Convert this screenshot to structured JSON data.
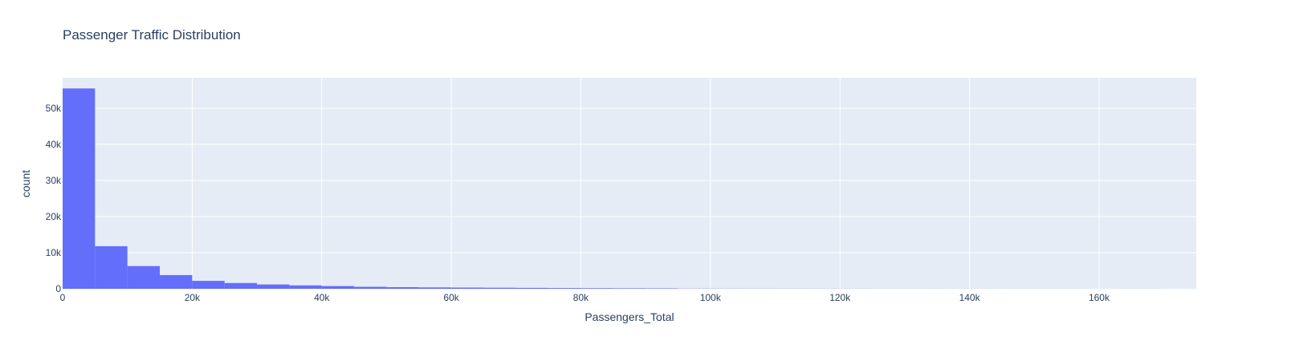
{
  "chart_data": {
    "type": "bar",
    "title": "Passenger Traffic Distribution",
    "xlabel": "Passengers_Total",
    "ylabel": "count",
    "bin_width": 5000,
    "bin_starts": [
      0,
      5000,
      10000,
      15000,
      20000,
      25000,
      30000,
      35000,
      40000,
      45000,
      50000,
      55000,
      60000,
      65000,
      70000,
      75000,
      80000,
      85000,
      90000,
      95000,
      100000,
      105000,
      110000,
      115000,
      120000,
      125000,
      130000,
      135000,
      140000,
      145000,
      150000,
      155000,
      160000,
      165000,
      170000
    ],
    "values": [
      55500,
      11800,
      6300,
      3800,
      2200,
      1600,
      1200,
      950,
      750,
      550,
      450,
      380,
      330,
      290,
      250,
      200,
      170,
      140,
      120,
      50,
      40,
      35,
      30,
      25,
      20,
      18,
      15,
      12,
      10,
      8,
      6,
      5,
      4,
      3,
      2
    ],
    "xlim": [
      0,
      175000
    ],
    "ylim": [
      0,
      58450
    ],
    "x_ticks": [
      0,
      20000,
      40000,
      60000,
      80000,
      100000,
      120000,
      140000,
      160000
    ],
    "x_tick_labels": [
      "0",
      "20k",
      "40k",
      "60k",
      "80k",
      "100k",
      "120k",
      "140k",
      "160k"
    ],
    "y_ticks": [
      0,
      10000,
      20000,
      30000,
      40000,
      50000
    ],
    "y_tick_labels": [
      "0",
      "10k",
      "20k",
      "30k",
      "40k",
      "50k"
    ],
    "grid": true,
    "colors": {
      "bar": "#636efa",
      "plot_bg": "#e5ecf6",
      "grid": "#ffffff",
      "text": "#2a3f5f"
    }
  }
}
